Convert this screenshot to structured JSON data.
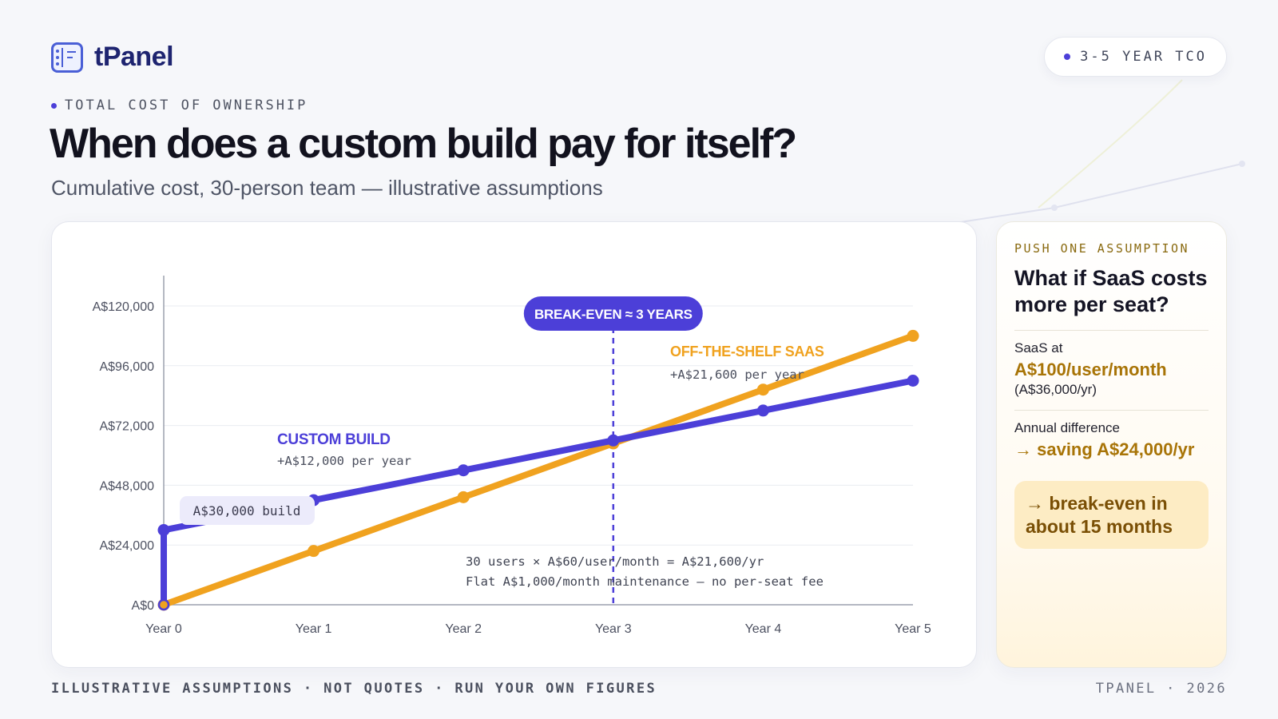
{
  "brand": {
    "name": "tPanel"
  },
  "header": {
    "pill_label": "3-5 YEAR TCO",
    "eyebrow": "TOTAL COST OF OWNERSHIP",
    "title": "When does a custom build pay for itself?",
    "subtitle": "Cumulative cost, 30-person team — illustrative assumptions"
  },
  "colors": {
    "accent": "#4c3fd8",
    "saas": "#f0a21f",
    "ink": "#12121e"
  },
  "chart_data": {
    "type": "line",
    "categories": [
      "Year 0",
      "Year 1",
      "Year 2",
      "Year 3",
      "Year 4",
      "Year 5"
    ],
    "ylim": [
      0,
      120000
    ],
    "yticks": [
      0,
      24000,
      48000,
      72000,
      96000,
      120000
    ],
    "ytick_labels": [
      "A$0",
      "A$24,000",
      "A$48,000",
      "A$72,000",
      "A$96,000",
      "A$120,000"
    ],
    "grid": true,
    "series": [
      {
        "name": "CUSTOM BUILD",
        "sublabel": "+A$12,000 per year",
        "color": "#4c3fd8",
        "x": [
          0,
          0,
          1,
          2,
          3,
          4,
          5
        ],
        "values": [
          0,
          30000,
          42000,
          54000,
          66000,
          78000,
          90000
        ]
      },
      {
        "name": "OFF-THE-SHELF SAAS",
        "sublabel": "+A$21,600 per year",
        "color": "#f0a21f",
        "x": [
          0,
          1,
          2,
          3,
          4,
          5
        ],
        "values": [
          0,
          21600,
          43200,
          64800,
          86400,
          108000
        ]
      }
    ],
    "annotations": {
      "build_label": "A$30,000 build",
      "break_even_label": "BREAK-EVEN ≈ 3 YEARS",
      "break_even_x": 3,
      "note_line1": "30 users × A$60/user/month = A$21,600/yr",
      "note_line2": "Flat A$1,000/month maintenance — no per-seat fee"
    }
  },
  "side": {
    "eyebrow": "PUSH ONE ASSUMPTION",
    "title": "What if SaaS costs more per seat?",
    "saas_label": "SaaS at",
    "saas_value": "A$100/user/month",
    "saas_note": "(A$36,000/yr)",
    "diff_label": "Annual difference",
    "diff_value": "→ saving A$24,000/yr",
    "callout": "→ break-even in about 15 months"
  },
  "footer": {
    "left": "ILLUSTRATIVE ASSUMPTIONS · NOT QUOTES · RUN YOUR OWN FIGURES",
    "right": "TPANEL · 2026"
  }
}
